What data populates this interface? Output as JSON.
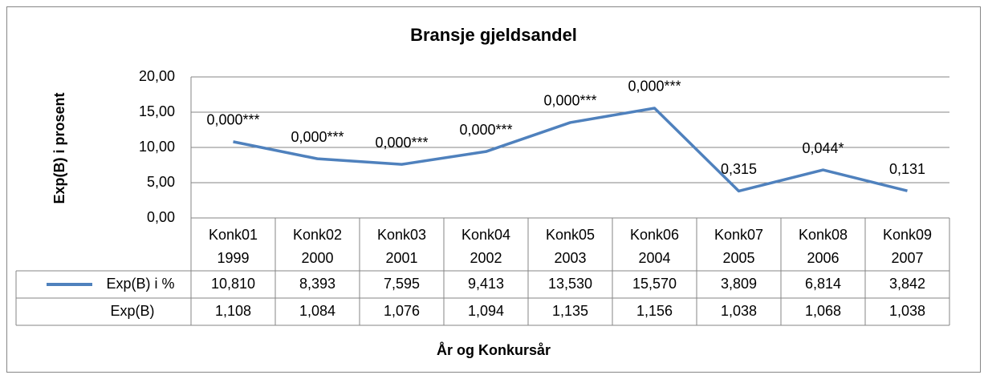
{
  "chart_data": {
    "type": "line",
    "title": "Bransje gjeldsandel",
    "y_label": "Exp(B) i prosent",
    "x_label": "År og Konkursår",
    "categories": [
      [
        "Konk01",
        "1999"
      ],
      [
        "Konk02",
        "2000"
      ],
      [
        "Konk03",
        "2001"
      ],
      [
        "Konk04",
        "2002"
      ],
      [
        "Konk05",
        "2003"
      ],
      [
        "Konk06",
        "2004"
      ],
      [
        "Konk07",
        "2005"
      ],
      [
        "Konk08",
        "2006"
      ],
      [
        "Konk09",
        "2007"
      ]
    ],
    "series": [
      {
        "name": "Exp(B) i %",
        "color": "#4f81bd",
        "values": [
          10.81,
          8.393,
          7.595,
          9.413,
          13.53,
          15.57,
          3.809,
          6.814,
          3.842
        ],
        "value_labels": [
          "10,810",
          "8,393",
          "7,595",
          "9,413",
          "13,530",
          "15,570",
          "3,809",
          "6,814",
          "3,842"
        ],
        "point_labels": [
          "0,000***",
          "0,000***",
          "0,000***",
          "0,000***",
          "0,000***",
          "0,000***",
          "0,315",
          "0,044*",
          "0,131"
        ]
      }
    ],
    "table_rows": [
      {
        "name": "Exp(B)",
        "values": [
          1.108,
          1.084,
          1.076,
          1.094,
          1.135,
          1.156,
          1.038,
          1.068,
          1.038
        ],
        "value_labels": [
          "1,108",
          "1,084",
          "1,076",
          "1,094",
          "1,135",
          "1,156",
          "1,038",
          "1,068",
          "1,038"
        ]
      }
    ],
    "ylim": [
      0,
      20
    ],
    "yticks": [
      {
        "value": 0,
        "label": "0,00"
      },
      {
        "value": 5,
        "label": "5,00"
      },
      {
        "value": 10,
        "label": "10,00"
      },
      {
        "value": 15,
        "label": "15,00"
      },
      {
        "value": 20,
        "label": "20,00"
      }
    ],
    "grid": true
  }
}
